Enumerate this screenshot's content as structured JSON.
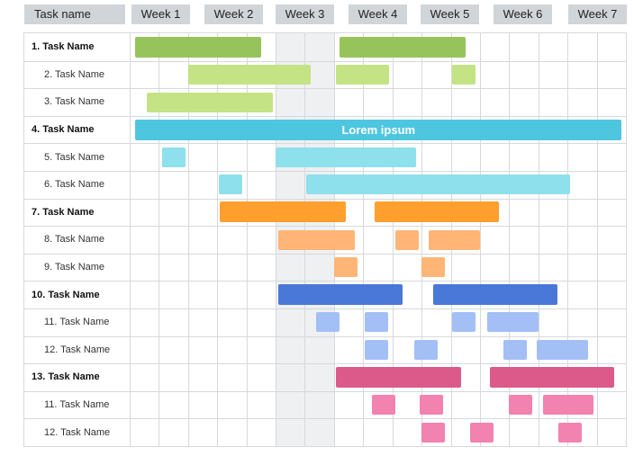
{
  "header": {
    "task_col": "Task name",
    "weeks": [
      "Week 1",
      "Week 2",
      "Week 3",
      "Week 4",
      "Week 5",
      "Week 6",
      "Week 7"
    ]
  },
  "grid": {
    "columns": 17,
    "highlighted_columns": [
      5,
      6
    ]
  },
  "colors": {
    "green": "#96c45a",
    "green_light": "#c3e384",
    "cyan": "#4ec6e0",
    "cyan_light": "#8ee0ec",
    "orange": "#ff9f2e",
    "orange_light": "#ffb575",
    "blue": "#4a78d8",
    "blue_light": "#a3bff5",
    "pink": "#dc5a8a",
    "pink_light": "#f282b0"
  },
  "rows": [
    {
      "label": "1. Task Name",
      "main": true,
      "color": "green",
      "bars": [
        {
          "start": 0.2,
          "end": 4.5
        },
        {
          "start": 7.2,
          "end": 11.5
        }
      ]
    },
    {
      "label": "2. Task Name",
      "main": false,
      "color": "green_light",
      "bars": [
        {
          "start": 2.0,
          "end": 6.2
        },
        {
          "start": 7.05,
          "end": 8.9
        },
        {
          "start": 11.05,
          "end": 11.85
        }
      ]
    },
    {
      "label": "3. Task Name",
      "main": false,
      "color": "green_light",
      "bars": [
        {
          "start": 0.6,
          "end": 4.9
        }
      ]
    },
    {
      "label": "4. Task Name",
      "main": true,
      "color": "cyan",
      "bars": [
        {
          "start": 0.2,
          "end": 16.85,
          "text": "Lorem ipsum"
        }
      ]
    },
    {
      "label": "5. Task Name",
      "main": false,
      "color": "cyan_light",
      "bars": [
        {
          "start": 1.1,
          "end": 1.9
        },
        {
          "start": 5.0,
          "end": 9.8
        }
      ]
    },
    {
      "label": "6. Task Name",
      "main": false,
      "color": "cyan_light",
      "bars": [
        {
          "start": 3.05,
          "end": 3.85
        },
        {
          "start": 6.05,
          "end": 15.1
        }
      ]
    },
    {
      "label": "7. Task Name",
      "main": true,
      "color": "orange",
      "bars": [
        {
          "start": 3.1,
          "end": 7.4
        },
        {
          "start": 8.4,
          "end": 12.65
        }
      ]
    },
    {
      "label": "8. Task Name",
      "main": false,
      "color": "orange_light",
      "bars": [
        {
          "start": 5.1,
          "end": 7.7
        },
        {
          "start": 9.1,
          "end": 9.9
        },
        {
          "start": 10.25,
          "end": 12.0
        }
      ]
    },
    {
      "label": "9. Task Name",
      "main": false,
      "color": "orange_light",
      "bars": [
        {
          "start": 7.0,
          "end": 7.8
        },
        {
          "start": 10.0,
          "end": 10.8
        }
      ]
    },
    {
      "label": "10. Task Name",
      "main": true,
      "color": "blue",
      "bars": [
        {
          "start": 5.1,
          "end": 9.35
        },
        {
          "start": 10.4,
          "end": 14.65
        }
      ]
    },
    {
      "label": "11. Task Name",
      "main": false,
      "color": "blue_light",
      "bars": [
        {
          "start": 6.4,
          "end": 7.2
        },
        {
          "start": 8.05,
          "end": 8.85
        },
        {
          "start": 11.05,
          "end": 11.85
        },
        {
          "start": 12.25,
          "end": 14.0
        }
      ]
    },
    {
      "label": "12. Task Name",
      "main": false,
      "color": "blue_light",
      "bars": [
        {
          "start": 8.05,
          "end": 8.85
        },
        {
          "start": 9.75,
          "end": 10.55
        },
        {
          "start": 12.8,
          "end": 13.6
        },
        {
          "start": 13.95,
          "end": 15.7
        }
      ]
    },
    {
      "label": "13. Task Name",
      "main": true,
      "color": "pink",
      "bars": [
        {
          "start": 7.05,
          "end": 11.35
        },
        {
          "start": 12.35,
          "end": 16.6
        }
      ]
    },
    {
      "label": "11. Task Name",
      "main": false,
      "color": "pink_light",
      "bars": [
        {
          "start": 8.3,
          "end": 9.1
        },
        {
          "start": 9.95,
          "end": 10.75
        },
        {
          "start": 13.0,
          "end": 13.8
        },
        {
          "start": 14.15,
          "end": 15.9
        }
      ]
    },
    {
      "label": "12. Task Name",
      "main": false,
      "color": "pink_light",
      "bars": [
        {
          "start": 10.0,
          "end": 10.8
        },
        {
          "start": 11.65,
          "end": 12.45
        },
        {
          "start": 14.7,
          "end": 15.5
        }
      ]
    }
  ]
}
